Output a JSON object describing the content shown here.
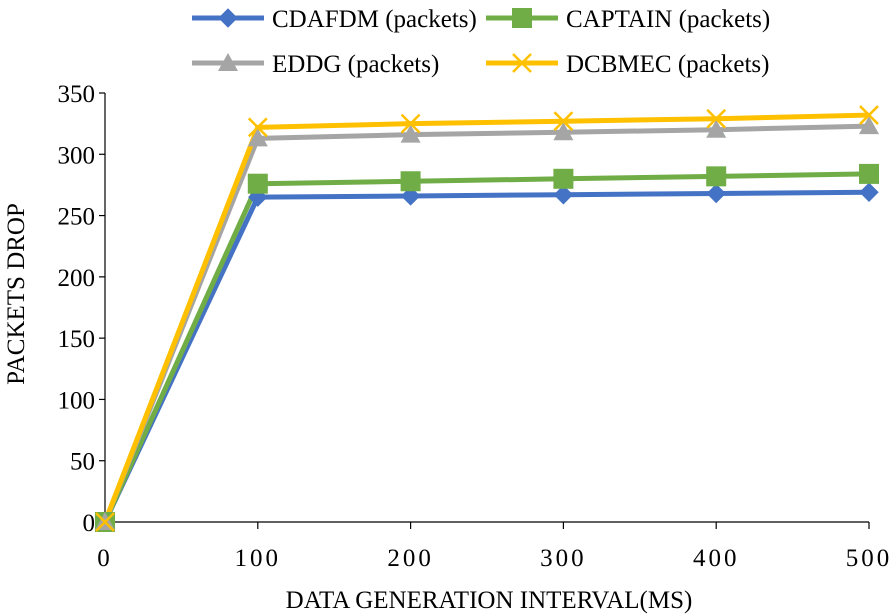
{
  "chart_data": {
    "type": "line",
    "title": "",
    "xlabel": "DATA GENERATION INTERVAL(MS)",
    "ylabel": "PACKETS DROP",
    "x": [
      0,
      100,
      200,
      300,
      400,
      500
    ],
    "x_tick_labels": [
      "0",
      "100",
      "200",
      "300",
      "400",
      "500"
    ],
    "y_tick_labels": [
      "0",
      "50",
      "100",
      "150",
      "200",
      "250",
      "300",
      "350"
    ],
    "ylim": [
      0,
      350
    ],
    "grid": false,
    "legend_position": "top",
    "series": [
      {
        "name": "CDAFDM (packets)",
        "color": "#4472C4",
        "marker": "diamond",
        "values": [
          0,
          265,
          266,
          267,
          268,
          269
        ]
      },
      {
        "name": "CAPTAIN (packets)",
        "color": "#70AD47",
        "marker": "square",
        "values": [
          0,
          276,
          278,
          280,
          282,
          284
        ]
      },
      {
        "name": "EDDG (packets)",
        "color": "#A5A5A5",
        "marker": "triangle",
        "values": [
          0,
          313,
          316,
          318,
          320,
          323
        ]
      },
      {
        "name": "DCBMEC (packets)",
        "color": "#FFC000",
        "marker": "x",
        "values": [
          0,
          322,
          325,
          327,
          329,
          332
        ]
      }
    ]
  }
}
